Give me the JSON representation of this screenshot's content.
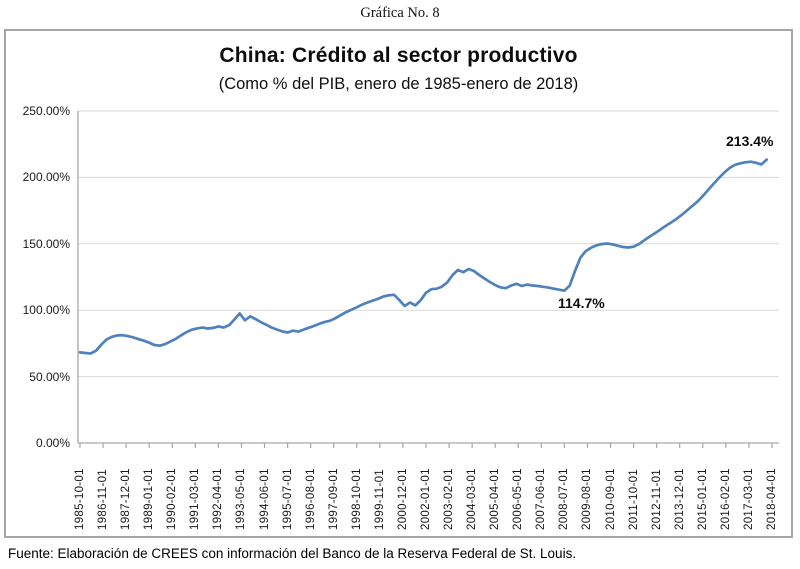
{
  "figure_label": "Gráfica No. 8",
  "source_note": "Fuente: Elaboración de CREES con información del Banco de la Reserva Federal de St. Louis.",
  "colors": {
    "line": "#4F81BD",
    "gridline": "#d9d9d9",
    "axis": "#a6a6a6",
    "text": "#1a1a1a",
    "border": "#a6a6a6"
  },
  "chart_data": {
    "type": "line",
    "title": "China: Crédito al sector productivo",
    "subtitle": "(Como % del PIB, enero de 1985-enero de 2018)",
    "xlabel": "",
    "ylabel": "",
    "ylim": [
      0,
      250
    ],
    "grid": true,
    "legend_position": "none",
    "y_tick_labels": [
      "250.00%",
      "200.00%",
      "150.00%",
      "100.00%",
      "50.00%",
      "0.00%"
    ],
    "x_tick_labels": [
      "1985-10-01",
      "1986-11-01",
      "1987-12-01",
      "1989-01-01",
      "1990-02-01",
      "1991-03-01",
      "1992-04-01",
      "1993-05-01",
      "1994-06-01",
      "1995-07-01",
      "1996-08-01",
      "1997-09-01",
      "1998-10-01",
      "1999-11-01",
      "2000-12-01",
      "2002-01-01",
      "2003-02-01",
      "2004-03-01",
      "2005-04-01",
      "2006-05-01",
      "2007-06-01",
      "2008-07-01",
      "2009-08-01",
      "2010-09-01",
      "2011-10-01",
      "2012-11-01",
      "2013-12-01",
      "2015-01-01",
      "2016-02-01",
      "2017-03-01",
      "2018-04-01"
    ],
    "annotations": [
      {
        "text": "114.7%",
        "date": "2008-07",
        "value": 114.7
      },
      {
        "text": "213.4%",
        "date": "2018-01",
        "value": 213.4
      }
    ],
    "series": [
      {
        "name": "Crédito al sector productivo (% del PIB)",
        "points": [
          [
            "1985-10",
            68.2
          ],
          [
            "1986-01",
            67.8
          ],
          [
            "1986-04",
            67.4
          ],
          [
            "1986-07",
            69.5
          ],
          [
            "1986-10",
            74.0
          ],
          [
            "1987-01",
            78.0
          ],
          [
            "1987-04",
            80.0
          ],
          [
            "1987-07",
            81.0
          ],
          [
            "1987-10",
            81.2
          ],
          [
            "1988-01",
            80.5
          ],
          [
            "1988-04",
            79.5
          ],
          [
            "1988-07",
            78.2
          ],
          [
            "1988-10",
            77.0
          ],
          [
            "1989-01",
            75.5
          ],
          [
            "1989-04",
            73.8
          ],
          [
            "1989-07",
            73.3
          ],
          [
            "1989-10",
            74.5
          ],
          [
            "1990-01",
            76.5
          ],
          [
            "1990-04",
            78.5
          ],
          [
            "1990-07",
            81.0
          ],
          [
            "1990-10",
            83.5
          ],
          [
            "1991-01",
            85.3
          ],
          [
            "1991-04",
            86.3
          ],
          [
            "1991-07",
            86.9
          ],
          [
            "1991-10",
            86.2
          ],
          [
            "1992-01",
            86.7
          ],
          [
            "1992-04",
            87.8
          ],
          [
            "1992-07",
            87.0
          ],
          [
            "1992-10",
            88.6
          ],
          [
            "1993-01",
            93.0
          ],
          [
            "1993-04",
            97.6
          ],
          [
            "1993-07",
            92.4
          ],
          [
            "1993-10",
            95.4
          ],
          [
            "1994-01",
            93.2
          ],
          [
            "1994-04",
            91.0
          ],
          [
            "1994-07",
            89.0
          ],
          [
            "1994-10",
            87.0
          ],
          [
            "1995-01",
            85.4
          ],
          [
            "1995-04",
            84.0
          ],
          [
            "1995-07",
            83.2
          ],
          [
            "1995-10",
            84.6
          ],
          [
            "1996-01",
            83.9
          ],
          [
            "1996-04",
            85.4
          ],
          [
            "1996-07",
            86.8
          ],
          [
            "1996-10",
            88.2
          ],
          [
            "1997-01",
            89.8
          ],
          [
            "1997-04",
            91.2
          ],
          [
            "1997-07",
            92.1
          ],
          [
            "1997-10",
            94.0
          ],
          [
            "1998-01",
            96.3
          ],
          [
            "1998-04",
            98.6
          ],
          [
            "1998-07",
            100.4
          ],
          [
            "1998-10",
            102.2
          ],
          [
            "1999-01",
            104.2
          ],
          [
            "1999-04",
            105.8
          ],
          [
            "1999-07",
            107.2
          ],
          [
            "1999-10",
            108.6
          ],
          [
            "2000-01",
            110.3
          ],
          [
            "2000-04",
            111.2
          ],
          [
            "2000-07",
            111.6
          ],
          [
            "2000-10",
            107.5
          ],
          [
            "2001-01",
            103.2
          ],
          [
            "2001-04",
            105.8
          ],
          [
            "2001-07",
            103.6
          ],
          [
            "2001-10",
            107.5
          ],
          [
            "2002-01",
            113.2
          ],
          [
            "2002-04",
            115.8
          ],
          [
            "2002-07",
            116.2
          ],
          [
            "2002-10",
            117.8
          ],
          [
            "2003-01",
            121.0
          ],
          [
            "2003-04",
            126.5
          ],
          [
            "2003-07",
            130.3
          ],
          [
            "2003-10",
            128.6
          ],
          [
            "2004-01",
            131.0
          ],
          [
            "2004-04",
            129.5
          ],
          [
            "2004-07",
            126.5
          ],
          [
            "2004-10",
            123.8
          ],
          [
            "2005-01",
            121.2
          ],
          [
            "2005-04",
            118.9
          ],
          [
            "2005-07",
            117.2
          ],
          [
            "2005-10",
            116.6
          ],
          [
            "2006-01",
            118.6
          ],
          [
            "2006-04",
            119.9
          ],
          [
            "2006-07",
            118.2
          ],
          [
            "2006-10",
            119.3
          ],
          [
            "2007-01",
            118.6
          ],
          [
            "2007-04",
            118.2
          ],
          [
            "2007-07",
            117.6
          ],
          [
            "2007-10",
            117.0
          ],
          [
            "2008-01",
            116.2
          ],
          [
            "2008-04",
            115.4
          ],
          [
            "2008-07",
            114.7
          ],
          [
            "2008-10",
            118.5
          ],
          [
            "2009-01",
            129.5
          ],
          [
            "2009-04",
            139.5
          ],
          [
            "2009-07",
            144.5
          ],
          [
            "2009-10",
            147.0
          ],
          [
            "2010-01",
            148.8
          ],
          [
            "2010-04",
            149.8
          ],
          [
            "2010-07",
            150.2
          ],
          [
            "2010-10",
            149.6
          ],
          [
            "2011-01",
            148.6
          ],
          [
            "2011-04",
            147.6
          ],
          [
            "2011-07",
            147.2
          ],
          [
            "2011-10",
            147.8
          ],
          [
            "2012-01",
            149.8
          ],
          [
            "2012-04",
            152.6
          ],
          [
            "2012-07",
            155.4
          ],
          [
            "2012-10",
            158.0
          ],
          [
            "2013-01",
            160.6
          ],
          [
            "2013-04",
            163.4
          ],
          [
            "2013-07",
            166.0
          ],
          [
            "2013-10",
            168.6
          ],
          [
            "2014-01",
            171.6
          ],
          [
            "2014-04",
            175.0
          ],
          [
            "2014-07",
            178.5
          ],
          [
            "2014-10",
            181.8
          ],
          [
            "2015-01",
            186.0
          ],
          [
            "2015-04",
            190.5
          ],
          [
            "2015-07",
            195.0
          ],
          [
            "2015-10",
            199.5
          ],
          [
            "2016-01",
            203.5
          ],
          [
            "2016-04",
            207.0
          ],
          [
            "2016-07",
            209.3
          ],
          [
            "2016-10",
            210.6
          ],
          [
            "2017-01",
            211.4
          ],
          [
            "2017-04",
            211.8
          ],
          [
            "2017-07",
            211.0
          ],
          [
            "2017-10",
            209.8
          ],
          [
            "2018-01",
            213.4
          ]
        ]
      }
    ]
  }
}
